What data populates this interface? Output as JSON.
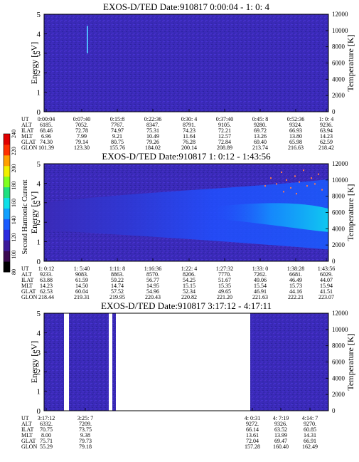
{
  "colorbar": {
    "label": "Second Harmonic Current",
    "ticks": [
      "240",
      "220",
      "200",
      "180",
      "160",
      "140",
      "120",
      "100",
      "80"
    ],
    "colors": [
      "#000000",
      "#3a0a50",
      "#3b1a9a",
      "#2a2adf",
      "#1a5cff",
      "#10a0ff",
      "#10e0e8",
      "#20e080",
      "#80ff20",
      "#f0f000",
      "#ffa000",
      "#ff3000",
      "#e00000"
    ]
  },
  "chart_data": [
    {
      "type": "heatmap",
      "title": "EXOS-D/TED   Date:910817  0:00:04 - 1: 0: 4",
      "ylabel": "Energy [eV]",
      "y2label": "Temperature [K]",
      "ylim": [
        0,
        5
      ],
      "y2lim": [
        0,
        12000
      ],
      "yticks": [
        "0",
        "1",
        "2",
        "3",
        "4",
        "5"
      ],
      "y2ticks": [
        "0",
        "2000",
        "4000",
        "6000",
        "8000",
        "10000",
        "12000"
      ],
      "row_labels": [
        "UT",
        "ALT",
        "ILAT",
        "MLT",
        "GLAT",
        "GLON"
      ],
      "columns": [
        [
          "0:00:04",
          "6185.",
          "68.46",
          "6.96",
          "74.30",
          "101.39"
        ],
        [
          "0:07:40",
          "7052.",
          "72.78",
          "7.99",
          "79.14",
          "123.30"
        ],
        [
          "0:15:8",
          "7767.",
          "74.97",
          "9.21",
          "80.75",
          "155.76"
        ],
        [
          "0:22:36",
          "8347.",
          "75.31",
          "10.49",
          "79.26",
          "184.02"
        ],
        [
          "0:30: 4",
          "8791.",
          "74.23",
          "11.64",
          "76.28",
          "200.14"
        ],
        [
          "0:37:40",
          "9105.",
          "72.21",
          "12.57",
          "72.84",
          "208.89"
        ],
        [
          "0:45: 8",
          "9280.",
          "69.72",
          "13.26",
          "69.40",
          "213.74"
        ],
        [
          "0:52:36",
          "9324.",
          "66.93",
          "13.80",
          "65.98",
          "216.63"
        ],
        [
          "1: 0: 4",
          "9236.",
          "63.94",
          "14.23",
          "62.59",
          "218.42"
        ]
      ]
    },
    {
      "type": "heatmap",
      "title": "EXOS-D/TED   Date:910817  1: 0:12 - 1:43:56",
      "ylabel": "Energy [eV]",
      "y2label": "Temperature [K]",
      "ylim": [
        0,
        5
      ],
      "y2lim": [
        0,
        12000
      ],
      "yticks": [
        "0",
        "1",
        "2",
        "3",
        "4",
        "5"
      ],
      "y2ticks": [
        "0",
        "2000",
        "4000",
        "6000",
        "8000",
        "10000",
        "12000"
      ],
      "row_labels": [
        "UT",
        "ALT",
        "ILAT",
        "MLT",
        "GLAT",
        "GLON"
      ],
      "columns": [
        [
          "1: 0:12",
          "9233.",
          "63.88",
          "14.23",
          "62.53",
          "218.44"
        ],
        [
          "1: 5:40",
          "9083.",
          "61.59",
          "14.50",
          "60.04",
          "219.31"
        ],
        [
          "1:11: 8",
          "8863.",
          "59.22",
          "14.74",
          "57.52",
          "219.95"
        ],
        [
          "1:16:36",
          "8570.",
          "56.77",
          "14.95",
          "54.96",
          "220.43"
        ],
        [
          "1:22: 4",
          "8206.",
          "54.25",
          "15.15",
          "52.34",
          "220.82"
        ],
        [
          "1:27:32",
          "7770.",
          "51.67",
          "15.35",
          "49.65",
          "221.20"
        ],
        [
          "1:33: 0",
          "7262.",
          "49.06",
          "15.54",
          "46.91",
          "221.63"
        ],
        [
          "1:38:28",
          "6681.",
          "46.49",
          "15.73",
          "44.16",
          "222.21"
        ],
        [
          "1:43:56",
          "6029.",
          "44.07",
          "15.94",
          "41.51",
          "223.07"
        ]
      ]
    },
    {
      "type": "heatmap",
      "title": "EXOS-D/TED   Date:910817  3:17:12 - 4:17:11",
      "ylabel": "Energy [eV]",
      "y2label": "Temperature [K]",
      "ylim": [
        0,
        5
      ],
      "y2lim": [
        0,
        12000
      ],
      "yticks": [
        "0",
        "1",
        "2",
        "3",
        "4",
        "5"
      ],
      "y2ticks": [
        "0",
        "2000",
        "4000",
        "6000",
        "8000",
        "10000",
        "12000"
      ],
      "row_labels": [
        "UT",
        "ALT",
        "ILAT",
        "MLT",
        "GLAT",
        "GLON"
      ],
      "columns": [
        [
          "3:17:12",
          "6332.",
          "70.75",
          "8.00",
          "75.71",
          "55.29"
        ],
        [
          "3:25: 7",
          "7209.",
          "73.75",
          "9.38",
          "79.73",
          "79.18"
        ],
        [
          "4: 0:31",
          "9272.",
          "66.14",
          "13.61",
          "72.04",
          "157.28"
        ],
        [
          "4: 7:19",
          "9326.",
          "63.52",
          "13.99",
          "69.47",
          "160.40"
        ],
        [
          "4:14: 7",
          "9270.",
          "60.85",
          "14.31",
          "66.91",
          "162.49"
        ]
      ]
    }
  ]
}
